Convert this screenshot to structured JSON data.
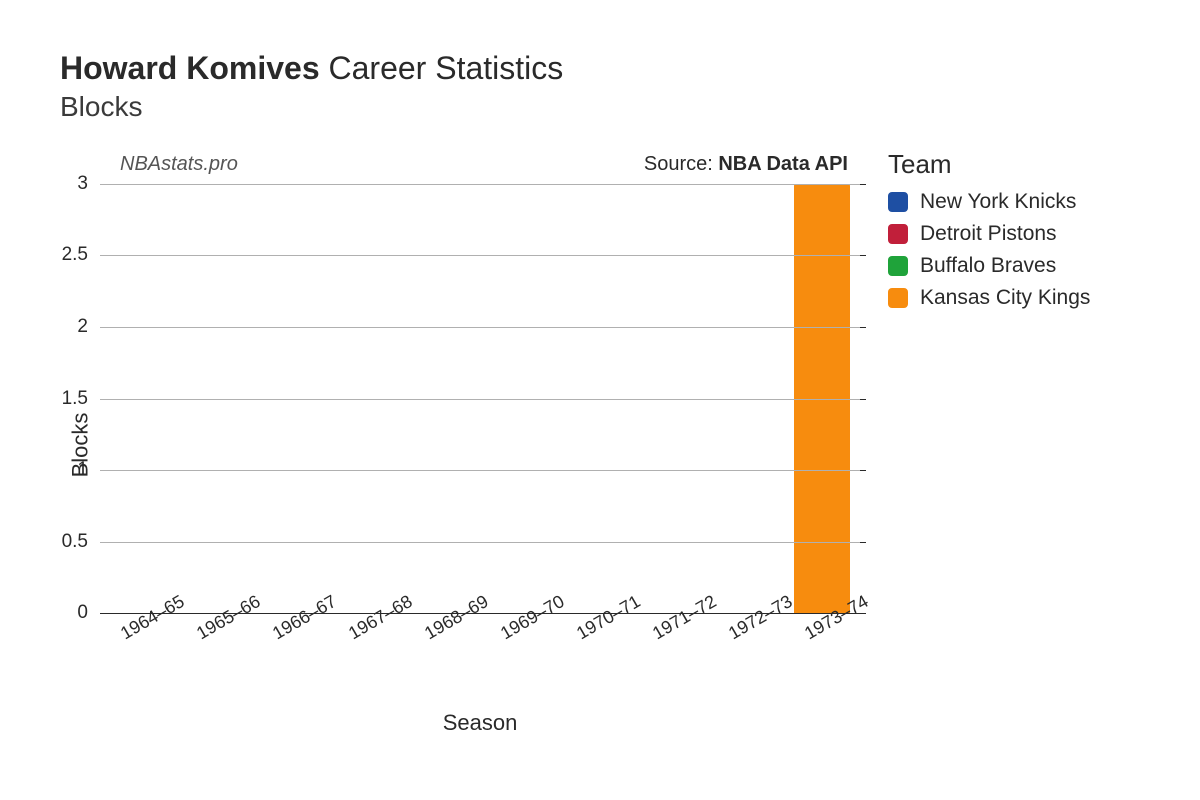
{
  "title": {
    "player_name": "Howard Komives",
    "suffix": "Career Statistics",
    "subtitle": "Blocks",
    "title_fontsize": 32,
    "subtitle_fontsize": 28
  },
  "meta": {
    "watermark": "NBAstats.pro",
    "source_prefix": "Source: ",
    "source_name": "NBA Data API"
  },
  "chart": {
    "type": "bar",
    "xlabel": "Season",
    "ylabel": "Blocks",
    "label_fontsize": 22,
    "tick_fontsize": 19,
    "background_color": "#ffffff",
    "grid_color": "#b0b0b0",
    "axis_color": "#2a2a2a",
    "ylim": [
      0,
      3
    ],
    "ytick_step": 0.5,
    "yticks": [
      0,
      0.5,
      1,
      1.5,
      2,
      2.5,
      3
    ],
    "bar_width": 0.74,
    "categories": [
      "1964–65",
      "1965–66",
      "1966–67",
      "1967–68",
      "1968–69",
      "1969–70",
      "1970–71",
      "1971–72",
      "1972–73",
      "1973–74"
    ],
    "values": [
      0,
      0,
      0,
      0,
      0,
      0,
      0,
      0,
      0,
      3
    ],
    "bar_colors": [
      "#1e4fa3",
      "#1e4fa3",
      "#1e4fa3",
      "#1e4fa3",
      "#c11f3a",
      "#c11f3a",
      "#c11f3a",
      "#1fa33a",
      "#1fa33a",
      "#f78c0e"
    ],
    "xtick_rotation_deg": -30
  },
  "legend": {
    "title": "Team",
    "items": [
      {
        "label": "New York Knicks",
        "color": "#1e4fa3"
      },
      {
        "label": "Detroit Pistons",
        "color": "#c11f3a"
      },
      {
        "label": "Buffalo Braves",
        "color": "#1fa33a"
      },
      {
        "label": "Kansas City Kings",
        "color": "#f78c0e"
      }
    ]
  }
}
